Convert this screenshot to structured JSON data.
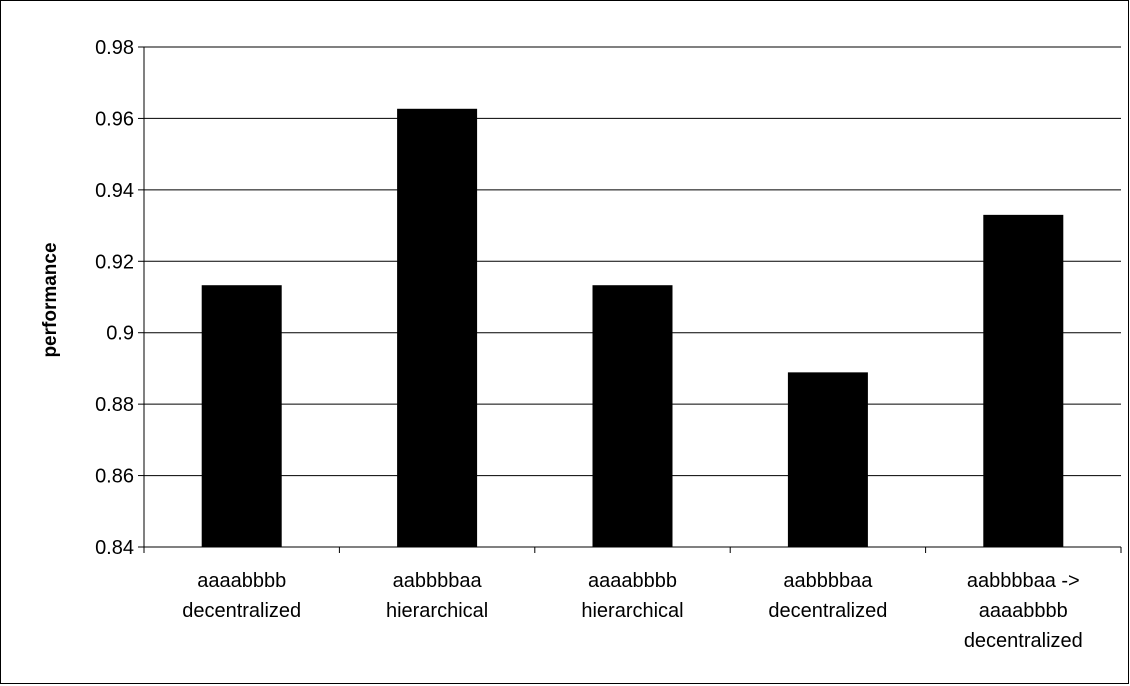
{
  "chart_data": {
    "type": "bar",
    "categories": [
      [
        "aaaabbbb",
        "decentralized"
      ],
      [
        "aabbbbaa",
        "hierarchical"
      ],
      [
        "aaaabbbb",
        "hierarchical"
      ],
      [
        "aabbbbaa",
        "decentralized"
      ],
      [
        "aabbbbaa ->",
        "aaaabbbb",
        "decentralized"
      ]
    ],
    "values": [
      0.9133,
      0.9627,
      0.9133,
      0.8889,
      0.933
    ],
    "ylabel": "performance",
    "xlabel": "",
    "ylim": [
      0.84,
      0.98
    ],
    "yticks": [
      "0.84",
      "0.86",
      "0.88",
      "0.9",
      "0.92",
      "0.94",
      "0.96",
      "0.98"
    ],
    "grid": "horizontal",
    "bar_color": "#000000",
    "legend": "none"
  }
}
